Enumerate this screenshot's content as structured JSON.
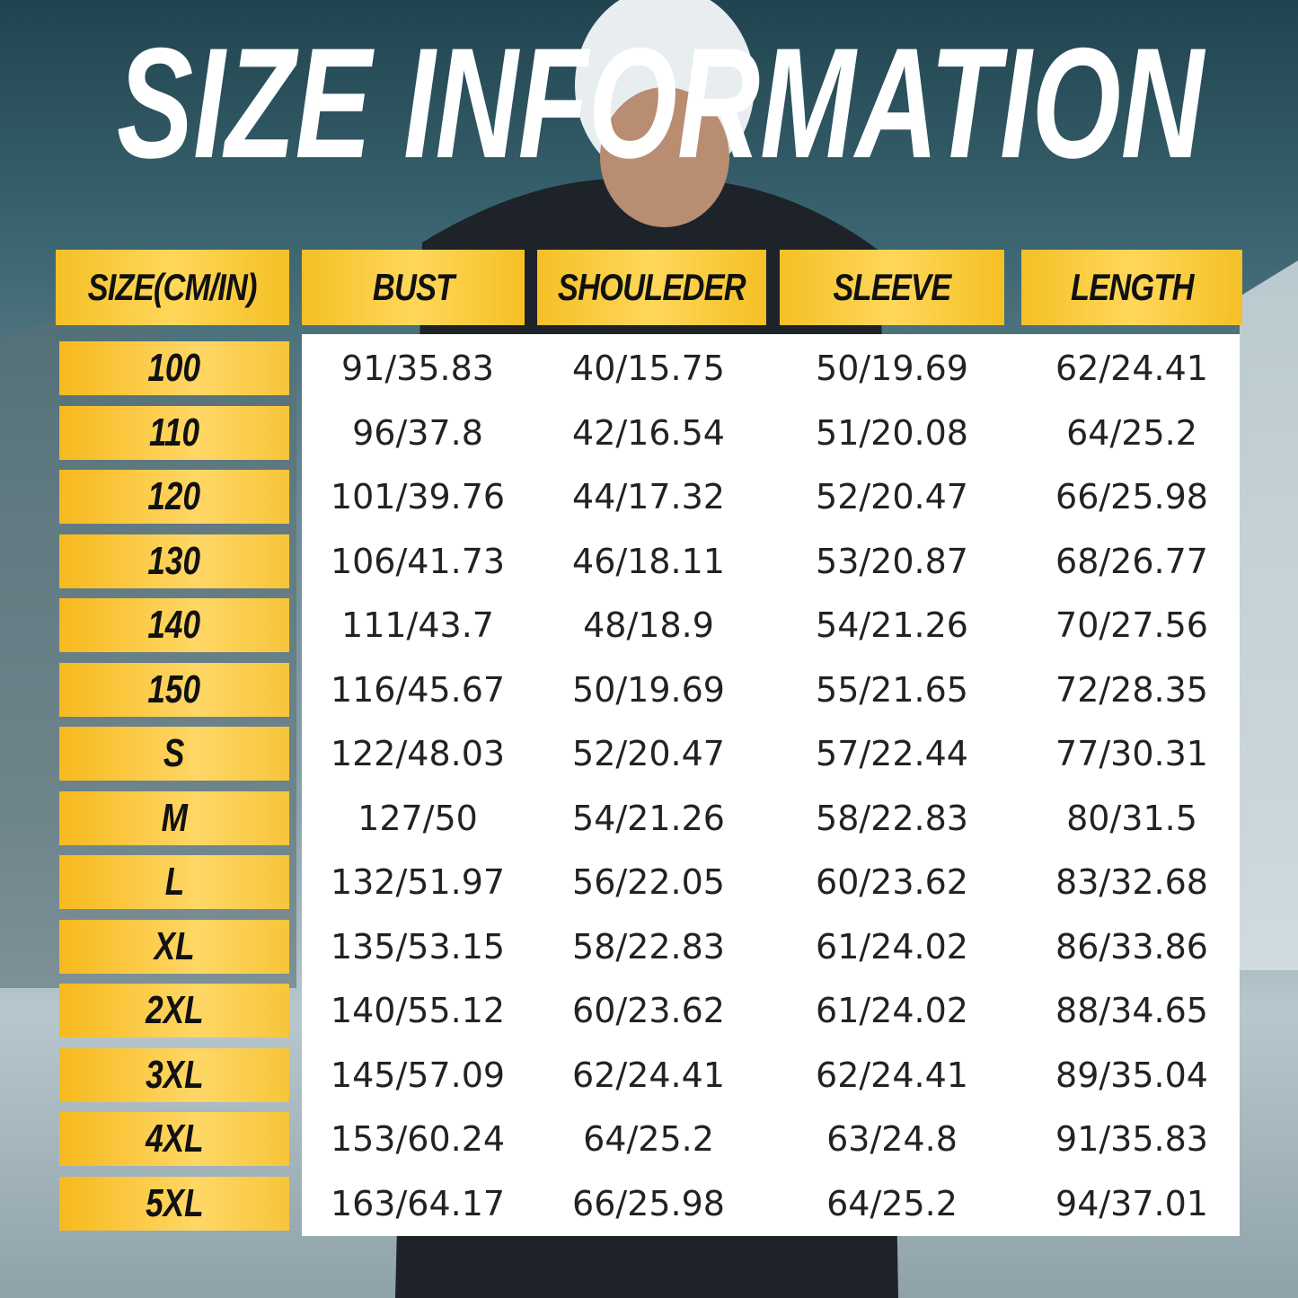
{
  "title": "SIZE INFORMATION",
  "table": {
    "header": [
      "SIZE(CM/IN)",
      "BUST",
      "SHOULEDER",
      "SLEEVE",
      "LENGTH"
    ],
    "rows": [
      [
        "100",
        "91/35.83",
        "40/15.75",
        "50/19.69",
        "62/24.41"
      ],
      [
        "110",
        "96/37.8",
        "42/16.54",
        "51/20.08",
        "64/25.2"
      ],
      [
        "120",
        "101/39.76",
        "44/17.32",
        "52/20.47",
        "66/25.98"
      ],
      [
        "130",
        "106/41.73",
        "46/18.11",
        "53/20.87",
        "68/26.77"
      ],
      [
        "140",
        "111/43.7",
        "48/18.9",
        "54/21.26",
        "70/27.56"
      ],
      [
        "150",
        "116/45.67",
        "50/19.69",
        "55/21.65",
        "72/28.35"
      ],
      [
        "S",
        "122/48.03",
        "52/20.47",
        "57/22.44",
        "77/30.31"
      ],
      [
        "M",
        "127/50",
        "54/21.26",
        "58/22.83",
        "80/31.5"
      ],
      [
        "L",
        "132/51.97",
        "56/22.05",
        "60/23.62",
        "83/32.68"
      ],
      [
        "XL",
        "135/53.15",
        "58/22.83",
        "61/24.02",
        "86/33.86"
      ],
      [
        "2XL",
        "140/55.12",
        "60/23.62",
        "61/24.02",
        "88/34.65"
      ],
      [
        "3XL",
        "145/57.09",
        "62/24.41",
        "62/24.41",
        "89/35.04"
      ],
      [
        "4XL",
        "153/60.24",
        "64/25.2",
        "63/24.8",
        "91/35.83"
      ],
      [
        "5XL",
        "163/64.17",
        "66/25.98",
        "64/25.2",
        "94/37.01"
      ]
    ]
  }
}
